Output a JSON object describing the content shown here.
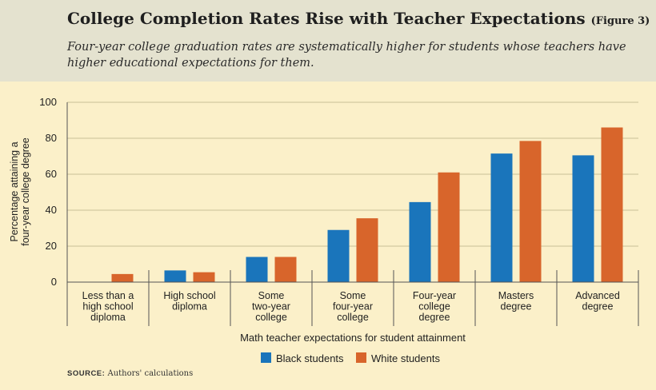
{
  "header": {
    "title": "College Completion Rates Rise with Teacher Expectations",
    "figure_label": "(Figure 3)",
    "subtitle": "Four-year college graduation rates are systematically higher for students whose teachers have higher educational expectations for them."
  },
  "source": {
    "label": "SOURCE:",
    "text": "Authors' calculations"
  },
  "colors": {
    "black_students": "#1a75bb",
    "white_students": "#d8652b",
    "grid": "#c9bf97",
    "axis": "#555555"
  },
  "chart_data": {
    "type": "bar",
    "title": "College Completion Rates Rise with Teacher Expectations",
    "ylabel_lines": [
      "Percentage attaining a",
      "four-year college degree"
    ],
    "xlabel": "Math teacher expectations for student attainment",
    "ylim": [
      0,
      100
    ],
    "yticks": [
      0,
      20,
      40,
      60,
      80,
      100
    ],
    "grid": true,
    "legend_position": "bottom-center",
    "categories": [
      [
        "Less than a",
        "high school",
        "diploma"
      ],
      [
        "High school",
        "diploma"
      ],
      [
        "Some",
        "two-year",
        "college"
      ],
      [
        "Some",
        "four-year",
        "college"
      ],
      [
        "Four-year",
        "college",
        "degree"
      ],
      [
        "Masters",
        "degree"
      ],
      [
        "Advanced",
        "degree"
      ]
    ],
    "series": [
      {
        "name": "Black students",
        "values": [
          0,
          6.5,
          14,
          29,
          44.5,
          71.5,
          70.5
        ]
      },
      {
        "name": "White students",
        "values": [
          4.5,
          5.5,
          14,
          35.5,
          61,
          78.5,
          86
        ]
      }
    ]
  }
}
